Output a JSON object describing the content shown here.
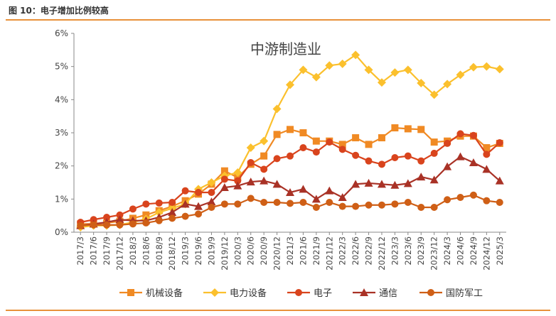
{
  "figure": {
    "title": "图 10：电子增加比例较高"
  },
  "colors": {
    "机械设备": "#f08a24",
    "电力设备": "#fbc02d",
    "电子": "#d9441d",
    "通信": "#a93226",
    "国防军工": "#cf5f16",
    "rule": "#e8913a",
    "axis": "#888888"
  },
  "chart_data": {
    "type": "line",
    "title": "中游制造业",
    "xlabel": "",
    "ylabel": "",
    "ylim": [
      0,
      6
    ],
    "yticks": [
      "0%",
      "1%",
      "2%",
      "3%",
      "4%",
      "5%",
      "6%"
    ],
    "grid": false,
    "legend": "bottom",
    "categories": [
      "2017/3",
      "2017/6",
      "2017/9",
      "2017/12",
      "2018/3",
      "2018/6",
      "2018/9",
      "2018/12",
      "2019/3",
      "2019/6",
      "2019/9",
      "2019/12",
      "2020/3",
      "2020/6",
      "2020/9",
      "2020/12",
      "2021/3",
      "2021/6",
      "2021/9",
      "2021/12",
      "2022/3",
      "2022/6",
      "2022/9",
      "2022/12",
      "2023/3",
      "2023/6",
      "2023/9",
      "2023/12",
      "2024/3",
      "2024/6",
      "2024/9",
      "2024/12",
      "2025/3"
    ],
    "series": [
      {
        "name": "机械设备",
        "marker": "square",
        "values": [
          0.25,
          0.25,
          0.28,
          0.33,
          0.42,
          0.52,
          0.65,
          0.78,
          0.95,
          1.15,
          1.45,
          1.85,
          1.65,
          2.05,
          2.3,
          2.95,
          3.1,
          3.0,
          2.75,
          2.75,
          2.65,
          2.85,
          2.65,
          2.85,
          3.15,
          3.12,
          3.1,
          2.72,
          2.75,
          2.9,
          2.9,
          2.55,
          2.68
        ]
      },
      {
        "name": "电力设备",
        "marker": "diamond",
        "values": [
          0.15,
          0.2,
          0.2,
          0.22,
          0.3,
          0.4,
          0.6,
          0.72,
          0.85,
          1.3,
          1.5,
          1.7,
          1.8,
          2.55,
          2.75,
          3.72,
          4.45,
          4.9,
          4.68,
          5.03,
          5.08,
          5.35,
          4.9,
          4.52,
          4.82,
          4.9,
          4.5,
          4.15,
          4.47,
          4.75,
          4.98,
          5.0,
          4.92
        ]
      },
      {
        "name": "电子",
        "marker": "circle",
        "values": [
          0.3,
          0.38,
          0.45,
          0.52,
          0.7,
          0.85,
          0.88,
          0.9,
          1.25,
          1.2,
          1.2,
          1.6,
          1.55,
          2.1,
          1.9,
          2.22,
          2.3,
          2.55,
          2.42,
          2.72,
          2.5,
          2.32,
          2.15,
          2.05,
          2.25,
          2.3,
          2.15,
          2.38,
          2.68,
          2.97,
          2.92,
          2.35,
          2.7
        ]
      },
      {
        "name": "通信",
        "marker": "triangle",
        "values": [
          0.2,
          0.25,
          0.3,
          0.38,
          0.35,
          0.35,
          0.45,
          0.6,
          0.85,
          0.78,
          0.92,
          1.35,
          1.4,
          1.52,
          1.55,
          1.45,
          1.2,
          1.3,
          1.0,
          1.25,
          1.05,
          1.45,
          1.48,
          1.45,
          1.42,
          1.47,
          1.67,
          1.58,
          1.98,
          2.28,
          2.1,
          1.9,
          1.55
        ]
      },
      {
        "name": "国防军工",
        "marker": "circle",
        "values": [
          0.2,
          0.22,
          0.22,
          0.22,
          0.25,
          0.28,
          0.35,
          0.42,
          0.48,
          0.55,
          0.75,
          0.85,
          0.85,
          1.02,
          0.9,
          0.9,
          0.87,
          0.9,
          0.75,
          0.9,
          0.78,
          0.78,
          0.82,
          0.82,
          0.85,
          0.9,
          0.75,
          0.75,
          0.98,
          1.05,
          1.12,
          0.95,
          0.9
        ]
      }
    ]
  }
}
